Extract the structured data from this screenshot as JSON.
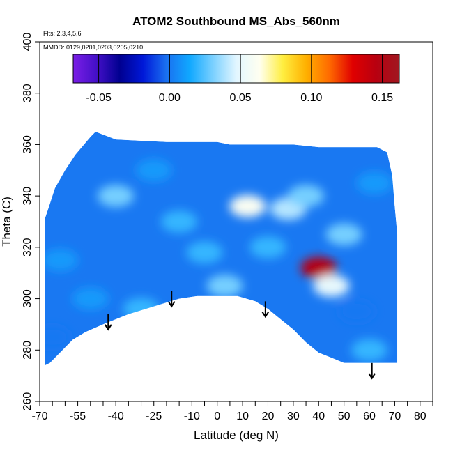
{
  "chart_data": {
    "type": "heatmap",
    "title": "ATOM2 Southbound MS_Abs_560nm",
    "xlabel": "Latitude (deg N)",
    "ylabel": "Theta (C)",
    "annotations": [
      "Flts: 2,3,4,5,6",
      "MMDD: 0129,0201,0203,0205,0210"
    ],
    "xlim": [
      -70,
      85
    ],
    "ylim": [
      260,
      400
    ],
    "x_ticks": [
      -70,
      -65,
      -60,
      -55,
      -50,
      -45,
      -40,
      -35,
      -30,
      -25,
      -20,
      -15,
      -10,
      -5,
      0,
      5,
      10,
      15,
      20,
      25,
      30,
      35,
      40,
      45,
      50,
      55,
      60,
      65,
      70,
      75,
      80,
      85
    ],
    "x_tick_labels": [
      {
        "x": -70,
        "label": "-70"
      },
      {
        "x": -55,
        "label": "-55"
      },
      {
        "x": -40,
        "label": "-40"
      },
      {
        "x": -25,
        "label": "-25"
      },
      {
        "x": -10,
        "label": "-10"
      },
      {
        "x": 0,
        "label": "0"
      },
      {
        "x": 10,
        "label": "10"
      },
      {
        "x": 20,
        "label": "20"
      },
      {
        "x": 30,
        "label": "30"
      },
      {
        "x": 40,
        "label": "40"
      },
      {
        "x": 50,
        "label": "50"
      },
      {
        "x": 60,
        "label": "60"
      },
      {
        "x": 70,
        "label": "70"
      },
      {
        "x": 80,
        "label": "80"
      }
    ],
    "y_ticks": [
      {
        "y": 260,
        "label": "260"
      },
      {
        "y": 280,
        "label": "280"
      },
      {
        "y": 300,
        "label": "300"
      },
      {
        "y": 320,
        "label": "320"
      },
      {
        "y": 340,
        "label": "340"
      },
      {
        "y": 360,
        "label": "360"
      },
      {
        "y": 380,
        "label": "380"
      },
      {
        "y": 400,
        "label": "400"
      }
    ],
    "colorbar": {
      "range": [
        -0.068,
        0.162
      ],
      "ticks": [
        {
          "value": -0.05,
          "label": "-0.05"
        },
        {
          "value": 0.0,
          "label": "0.00"
        },
        {
          "value": 0.05,
          "label": "0.05"
        },
        {
          "value": 0.1,
          "label": "0.10"
        },
        {
          "value": 0.15,
          "label": "0.15"
        }
      ],
      "colors": [
        "#7a1ee6",
        "#4410c8",
        "#000090",
        "#0018d8",
        "#1a70f0",
        "#10a8ff",
        "#7ad0ff",
        "#e2f6ff",
        "#fffff0",
        "#ffee40",
        "#ffb000",
        "#ff6a00",
        "#e00000",
        "#b80010",
        "#a01820"
      ]
    },
    "data_outline": [
      [
        -68,
        274
      ],
      [
        -66,
        275
      ],
      [
        -62,
        279
      ],
      [
        -57,
        284
      ],
      [
        -52,
        287
      ],
      [
        -45,
        290
      ],
      [
        -35,
        294
      ],
      [
        -25,
        297
      ],
      [
        -15,
        300
      ],
      [
        -8,
        301
      ],
      [
        0,
        301
      ],
      [
        8,
        301
      ],
      [
        15,
        299
      ],
      [
        20,
        296
      ],
      [
        25,
        292
      ],
      [
        30,
        288
      ],
      [
        35,
        283
      ],
      [
        40,
        279
      ],
      [
        45,
        277
      ],
      [
        50,
        275
      ],
      [
        58,
        275
      ],
      [
        65,
        275
      ],
      [
        71,
        275
      ],
      [
        71,
        325
      ],
      [
        70,
        336
      ],
      [
        69,
        348
      ],
      [
        67,
        357
      ],
      [
        63,
        359
      ],
      [
        52,
        359
      ],
      [
        40,
        359
      ],
      [
        30,
        360
      ],
      [
        5,
        360
      ],
      [
        0,
        361
      ],
      [
        -20,
        361
      ],
      [
        -40,
        362
      ],
      [
        -48,
        365
      ],
      [
        -50,
        363
      ],
      [
        -56,
        356
      ],
      [
        -60,
        350
      ],
      [
        -64,
        343
      ],
      [
        -66,
        337
      ],
      [
        -68,
        331
      ]
    ],
    "value_regions": [
      {
        "lat": -62,
        "theta": 315,
        "value": 0.01
      },
      {
        "lat": -50,
        "theta": 300,
        "value": 0.01
      },
      {
        "lat": -40,
        "theta": 340,
        "value": 0.03
      },
      {
        "lat": -25,
        "theta": 350,
        "value": 0.01
      },
      {
        "lat": -15,
        "theta": 330,
        "value": 0.02
      },
      {
        "lat": -5,
        "theta": 318,
        "value": 0.02
      },
      {
        "lat": 3,
        "theta": 305,
        "value": 0.03
      },
      {
        "lat": 12,
        "theta": 336,
        "value": 0.06
      },
      {
        "lat": 20,
        "theta": 320,
        "value": 0.02
      },
      {
        "lat": 28,
        "theta": 335,
        "value": 0.04
      },
      {
        "lat": 35,
        "theta": 340,
        "value": 0.03
      },
      {
        "lat": 40,
        "theta": 312,
        "value": 0.15
      },
      {
        "lat": 45,
        "theta": 305,
        "value": 0.05
      },
      {
        "lat": 50,
        "theta": 325,
        "value": 0.03
      },
      {
        "lat": 55,
        "theta": 295,
        "value": 0.0
      },
      {
        "lat": 60,
        "theta": 280,
        "value": 0.02
      },
      {
        "lat": 62,
        "theta": 345,
        "value": 0.01
      },
      {
        "lat": -65,
        "theta": 285,
        "value": 0.0
      },
      {
        "lat": -30,
        "theta": 296,
        "value": 0.02
      }
    ],
    "arrows": [
      {
        "lat": -43,
        "theta": 288
      },
      {
        "lat": -18,
        "theta": 297
      },
      {
        "lat": 19,
        "theta": 293
      },
      {
        "lat": 61,
        "theta": 269
      }
    ]
  }
}
